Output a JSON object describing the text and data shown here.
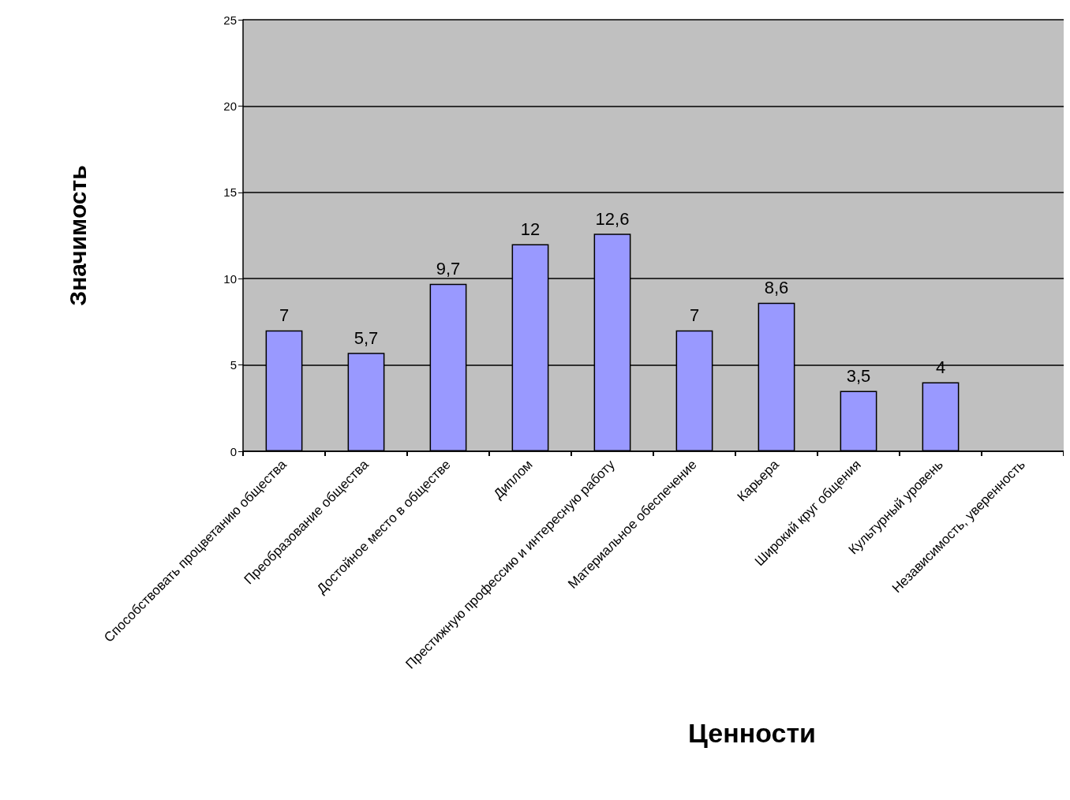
{
  "chart_data": {
    "type": "bar",
    "xlabel": "Ценности",
    "ylabel": "Значимость",
    "categories": [
      "Способствовать процветанию общества",
      "Преобразование общества",
      "Достойное место в обществе",
      "Диплом",
      "Престижную профессию и интересную работу",
      "Материальное обеспечение",
      "Карьера",
      "Широкий круг общения",
      "Культурный уровень",
      "Независимость, уверенность"
    ],
    "values": [
      7,
      5.7,
      9.7,
      12,
      12.6,
      7,
      8.6,
      3.5,
      4,
      null
    ],
    "value_labels": [
      "7",
      "5,7",
      "9,7",
      "12",
      "12,6",
      "7",
      "8,6",
      "3,5",
      "4",
      null
    ],
    "color": "#9999ff",
    "ylim": [
      0,
      25
    ],
    "yticks": [
      0,
      5,
      10,
      15,
      20,
      25
    ],
    "grid": "y"
  }
}
